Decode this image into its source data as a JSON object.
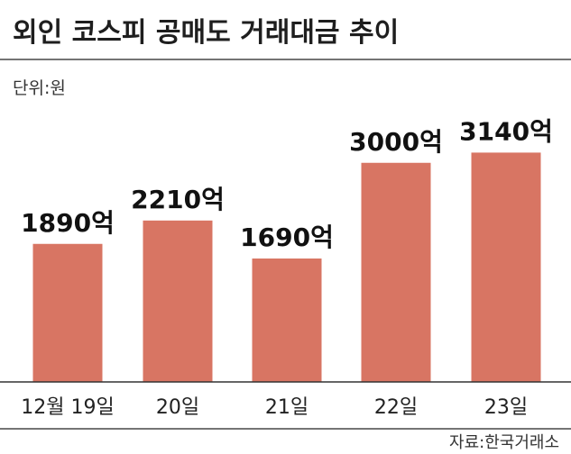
{
  "chart_data": {
    "type": "bar",
    "title": "외인 코스피 공매도 거래대금 추이",
    "unit_label": "단위:원",
    "categories": [
      "12월 19일",
      "20일",
      "21일",
      "22일",
      "23일"
    ],
    "values": [
      1890,
      2210,
      1690,
      3000,
      3140
    ],
    "value_labels": [
      "1890억",
      "2210억",
      "1690억",
      "3000억",
      "3140억"
    ],
    "value_unit": "억",
    "ylim": [
      0,
      3700
    ],
    "grid": false,
    "legend": "none",
    "source": "자료:한국거래소",
    "colors": {
      "bar": "#d87563",
      "baseline": "#333333",
      "divider": "#222222"
    }
  }
}
